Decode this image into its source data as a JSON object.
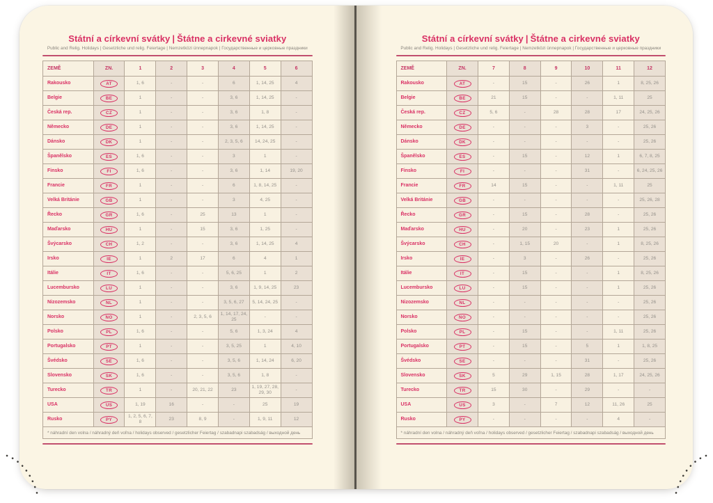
{
  "title": {
    "cz": "Státní a církevní svátky",
    "divider": "|",
    "sk": "Štátne a cirkevné sviatky"
  },
  "subtitle": "Public and Relig. Holidays | Gesetzliche und relig. Feiertage | Nemzetközi ünnepnapok | Государственные и церковные праздники",
  "footnote": "* náhradní den volna / náhradný deň voľna / holidays observed / gesetzlicher Feiertag / szabadnapi szabadság / выходной день",
  "colors": {
    "accent_pink": "#d93064",
    "rule_red": "#c14f6e",
    "page_cream": "#fbf5e4",
    "cell_light": "#f8f1e1",
    "cell_shaded": "#eae0d4",
    "number_grey": "#94908a",
    "border_grey": "#b3a697"
  },
  "left_table": {
    "headers": [
      "ZEMĚ",
      "ZN.",
      "1",
      "2",
      "3",
      "4",
      "5",
      "6"
    ],
    "rows": [
      {
        "country": "Rakousko",
        "code": "AT",
        "months": [
          "1, 6",
          "-",
          "-",
          "6",
          "1, 14, 25",
          "4"
        ]
      },
      {
        "country": "Belgie",
        "code": "BE",
        "months": [
          "1",
          "-",
          "-",
          "3, 6",
          "1, 14, 25",
          "-"
        ]
      },
      {
        "country": "Česká rep.",
        "code": "CZ",
        "months": [
          "1",
          "-",
          "-",
          "3, 6",
          "1, 8",
          "-"
        ]
      },
      {
        "country": "Německo",
        "code": "DE",
        "months": [
          "1",
          "-",
          "-",
          "3, 6",
          "1, 14, 25",
          "-"
        ]
      },
      {
        "country": "Dánsko",
        "code": "DK",
        "months": [
          "1",
          "-",
          "-",
          "2, 3, 5, 6",
          "14, 24, 25",
          "-"
        ]
      },
      {
        "country": "Španělsko",
        "code": "ES",
        "months": [
          "1, 6",
          "-",
          "-",
          "3",
          "1",
          "-"
        ]
      },
      {
        "country": "Finsko",
        "code": "FI",
        "months": [
          "1, 6",
          "-",
          "-",
          "3, 6",
          "1, 14",
          "19, 20"
        ]
      },
      {
        "country": "Francie",
        "code": "FR",
        "months": [
          "1",
          "-",
          "-",
          "6",
          "1, 8, 14, 25",
          "-"
        ]
      },
      {
        "country": "Velká Británie",
        "code": "GB",
        "months": [
          "1",
          "-",
          "-",
          "3",
          "4, 25",
          "-"
        ]
      },
      {
        "country": "Řecko",
        "code": "GR",
        "months": [
          "1, 6",
          "-",
          "25",
          "13",
          "1",
          "-"
        ]
      },
      {
        "country": "Maďarsko",
        "code": "HU",
        "months": [
          "1",
          "-",
          "15",
          "3, 6",
          "1, 25",
          "-"
        ]
      },
      {
        "country": "Švýcarsko",
        "code": "CH",
        "months": [
          "1, 2",
          "-",
          "-",
          "3, 6",
          "1, 14, 25",
          "4"
        ]
      },
      {
        "country": "Irsko",
        "code": "IE",
        "months": [
          "1",
          "2",
          "17",
          "6",
          "4",
          "1"
        ]
      },
      {
        "country": "Itálie",
        "code": "IT",
        "months": [
          "1, 6",
          "-",
          "-",
          "5, 6, 25",
          "1",
          "2"
        ]
      },
      {
        "country": "Lucembursko",
        "code": "LU",
        "months": [
          "1",
          "-",
          "-",
          "3, 6",
          "1, 9, 14, 25",
          "23"
        ]
      },
      {
        "country": "Nizozemsko",
        "code": "NL",
        "months": [
          "1",
          "-",
          "-",
          "3, 5, 6, 27",
          "5, 14, 24, 25",
          "-"
        ]
      },
      {
        "country": "Norsko",
        "code": "NO",
        "months": [
          "1",
          "-",
          "2, 3, 5, 6",
          "1, 14, 17, 24, 25",
          "-",
          "-"
        ]
      },
      {
        "country": "Polsko",
        "code": "PL",
        "months": [
          "1, 6",
          "-",
          "-",
          "5, 6",
          "1, 3, 24",
          "4"
        ]
      },
      {
        "country": "Portugalsko",
        "code": "PT",
        "months": [
          "1",
          "-",
          "-",
          "3, 5, 25",
          "1",
          "4, 10"
        ]
      },
      {
        "country": "Švédsko",
        "code": "SE",
        "months": [
          "1, 6",
          "-",
          "-",
          "3, 5, 6",
          "1, 14, 24",
          "6, 20"
        ]
      },
      {
        "country": "Slovensko",
        "code": "SK",
        "months": [
          "1, 6",
          "-",
          "-",
          "3, 5, 6",
          "1, 8",
          "-"
        ]
      },
      {
        "country": "Turecko",
        "code": "TR",
        "months": [
          "1",
          "-",
          "20, 21, 22",
          "23",
          "1, 19, 27, 28, 29, 30",
          "-"
        ]
      },
      {
        "country": "USA",
        "code": "US",
        "months": [
          "1, 19",
          "16",
          "-",
          "-",
          "25",
          "19"
        ]
      },
      {
        "country": "Rusko",
        "code": "PY",
        "months": [
          "1, 2, 5, 6, 7, 8",
          "23",
          "8, 9",
          "-",
          "1, 9, 11",
          "12"
        ]
      }
    ]
  },
  "right_table": {
    "headers": [
      "ZEMĚ",
      "ZN.",
      "7",
      "8",
      "9",
      "10",
      "11",
      "12"
    ],
    "rows": [
      {
        "country": "Rakousko",
        "code": "AT",
        "months": [
          "-",
          "15",
          "-",
          "26",
          "1",
          "8, 25, 26"
        ]
      },
      {
        "country": "Belgie",
        "code": "BE",
        "months": [
          "21",
          "15",
          "-",
          "-",
          "1, 11",
          "25"
        ]
      },
      {
        "country": "Česká rep.",
        "code": "CZ",
        "months": [
          "5, 6",
          "-",
          "28",
          "28",
          "17",
          "24, 25, 26"
        ]
      },
      {
        "country": "Německo",
        "code": "DE",
        "months": [
          "-",
          "-",
          "-",
          "3",
          "-",
          "25, 26"
        ]
      },
      {
        "country": "Dánsko",
        "code": "DK",
        "months": [
          "-",
          "-",
          "-",
          "-",
          "-",
          "25, 26"
        ]
      },
      {
        "country": "Španělsko",
        "code": "ES",
        "months": [
          "-",
          "15",
          "-",
          "12",
          "1",
          "6, 7, 8, 25"
        ]
      },
      {
        "country": "Finsko",
        "code": "FI",
        "months": [
          "-",
          "-",
          "-",
          "31",
          "-",
          "6, 24, 25, 26"
        ]
      },
      {
        "country": "Francie",
        "code": "FR",
        "months": [
          "14",
          "15",
          "-",
          "-",
          "1, 11",
          "25"
        ]
      },
      {
        "country": "Velká Británie",
        "code": "GB",
        "months": [
          "-",
          "-",
          "-",
          "-",
          "-",
          "25, 26, 28"
        ]
      },
      {
        "country": "Řecko",
        "code": "GR",
        "months": [
          "-",
          "15",
          "-",
          "28",
          "-",
          "25, 26"
        ]
      },
      {
        "country": "Maďarsko",
        "code": "HU",
        "months": [
          "-",
          "20",
          "-",
          "23",
          "1",
          "25, 26"
        ]
      },
      {
        "country": "Švýcarsko",
        "code": "CH",
        "months": [
          "-",
          "1, 15",
          "20",
          "-",
          "1",
          "8, 25, 26"
        ]
      },
      {
        "country": "Irsko",
        "code": "IE",
        "months": [
          "-",
          "3",
          "-",
          "26",
          "-",
          "25, 26"
        ]
      },
      {
        "country": "Itálie",
        "code": "IT",
        "months": [
          "-",
          "15",
          "-",
          "-",
          "1",
          "8, 25, 26"
        ]
      },
      {
        "country": "Lucembursko",
        "code": "LU",
        "months": [
          "-",
          "15",
          "-",
          "-",
          "1",
          "25, 26"
        ]
      },
      {
        "country": "Nizozemsko",
        "code": "NL",
        "months": [
          "-",
          "-",
          "-",
          "-",
          "-",
          "25, 26"
        ]
      },
      {
        "country": "Norsko",
        "code": "NO",
        "months": [
          "-",
          "-",
          "-",
          "-",
          "-",
          "25, 26"
        ]
      },
      {
        "country": "Polsko",
        "code": "PL",
        "months": [
          "-",
          "15",
          "-",
          "-",
          "1, 11",
          "25, 26"
        ]
      },
      {
        "country": "Portugalsko",
        "code": "PT",
        "months": [
          "-",
          "15",
          "-",
          "5",
          "1",
          "1, 8, 25"
        ]
      },
      {
        "country": "Švédsko",
        "code": "SE",
        "months": [
          "-",
          "-",
          "-",
          "31",
          "-",
          "25, 26"
        ]
      },
      {
        "country": "Slovensko",
        "code": "SK",
        "months": [
          "5",
          "29",
          "1, 15",
          "28",
          "1, 17",
          "24, 25, 26"
        ]
      },
      {
        "country": "Turecko",
        "code": "TR",
        "months": [
          "15",
          "30",
          "-",
          "29",
          "-",
          "-"
        ]
      },
      {
        "country": "USA",
        "code": "US",
        "months": [
          "3",
          "-",
          "7",
          "12",
          "11, 26",
          "25"
        ]
      },
      {
        "country": "Rusko",
        "code": "PY",
        "months": [
          "-",
          "-",
          "-",
          "-",
          "4",
          "-"
        ]
      }
    ]
  }
}
